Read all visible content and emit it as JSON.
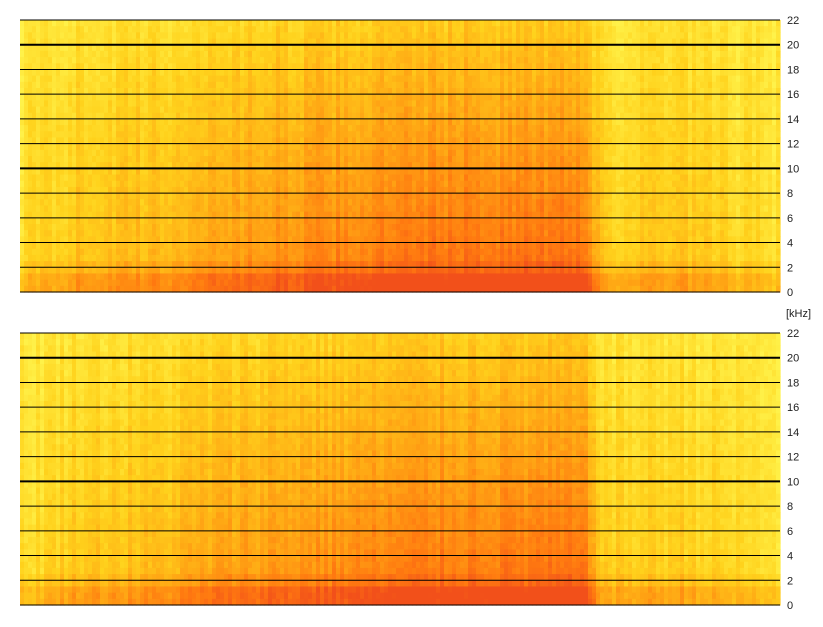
{
  "chart_data": {
    "type": "heatmap",
    "title": "",
    "xlabel": "",
    "ylabel": "",
    "unit_label": "[kHz]",
    "y_range": [
      0,
      22
    ],
    "y_ticks": [
      0,
      2,
      4,
      6,
      8,
      10,
      12,
      14,
      16,
      18,
      20,
      22
    ],
    "y_tick_labels": [
      "0",
      "2",
      "4",
      "6",
      "8",
      "10",
      "12",
      "14",
      "16",
      "18",
      "20",
      "22"
    ],
    "major_gridlines": [
      10,
      20
    ],
    "grid": true,
    "colormap": [
      "#fff24a",
      "#ffd21c",
      "#ffa814",
      "#ff7a10",
      "#f2501a"
    ],
    "panels": [
      {
        "channel": 1,
        "activity_profile": [
          {
            "t": 0.0,
            "level": 0.18
          },
          {
            "t": 0.08,
            "level": 0.38
          },
          {
            "t": 0.18,
            "level": 0.42
          },
          {
            "t": 0.26,
            "level": 0.58
          },
          {
            "t": 0.42,
            "level": 0.74
          },
          {
            "t": 0.55,
            "level": 0.84
          },
          {
            "t": 0.74,
            "level": 0.86
          },
          {
            "t": 0.77,
            "level": 0.3
          },
          {
            "t": 0.87,
            "level": 0.34
          },
          {
            "t": 0.95,
            "level": 0.22
          },
          {
            "t": 1.0,
            "level": 0.16
          }
        ]
      },
      {
        "channel": 2,
        "activity_profile": [
          {
            "t": 0.0,
            "level": 0.16
          },
          {
            "t": 0.08,
            "level": 0.36
          },
          {
            "t": 0.18,
            "level": 0.4
          },
          {
            "t": 0.26,
            "level": 0.56
          },
          {
            "t": 0.42,
            "level": 0.7
          },
          {
            "t": 0.55,
            "level": 0.8
          },
          {
            "t": 0.74,
            "level": 0.82
          },
          {
            "t": 0.77,
            "level": 0.28
          },
          {
            "t": 0.87,
            "level": 0.32
          },
          {
            "t": 0.95,
            "level": 0.2
          },
          {
            "t": 1.0,
            "level": 0.14
          }
        ]
      }
    ]
  }
}
